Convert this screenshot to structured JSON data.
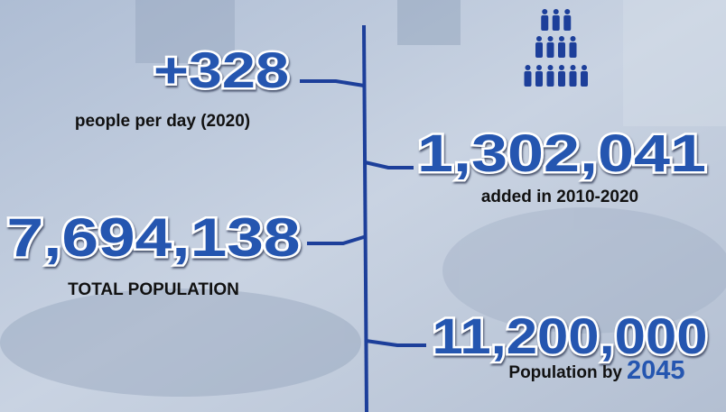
{
  "stats": [
    {
      "value": "+328",
      "label": "people per day (2020)"
    },
    {
      "value": "7,694,138",
      "label": "TOTAL POPULATION"
    },
    {
      "value": "1,302,041",
      "label": "added in 2010-2020"
    },
    {
      "value": "11,200,000",
      "label": "Population by",
      "year": "2045"
    }
  ]
}
